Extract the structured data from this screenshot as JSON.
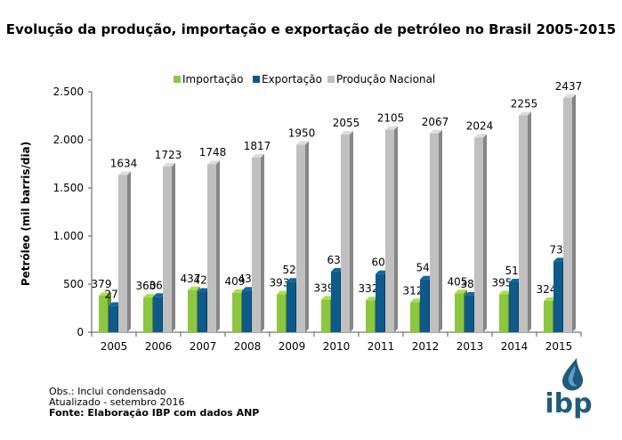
{
  "chart_data": {
    "type": "bar",
    "title": "Evolução da produção, importação e exportação de petróleo no Brasil 2005-2015",
    "ylabel": "Petróleo (mil barris/dia)",
    "xlabel": "",
    "ylim": [
      0,
      2500
    ],
    "yticks": [
      0,
      500,
      1000,
      1500,
      2000,
      2500
    ],
    "ytick_labels": [
      "0",
      "500",
      "1.000",
      "1.500",
      "2.000",
      "2.500"
    ],
    "grid": false,
    "legend_position": "top",
    "categories": [
      "2005",
      "2006",
      "2007",
      "2008",
      "2009",
      "2010",
      "2011",
      "2012",
      "2013",
      "2014",
      "2015"
    ],
    "series": [
      {
        "name": "Importação",
        "color": "#8dc63f",
        "values": [
          379,
          360,
          437,
          409,
          393,
          339,
          332,
          312,
          405,
          395,
          324
        ]
      },
      {
        "name": "Exportação",
        "color": "#0e5a8a",
        "values": [
          274,
          368,
          421,
          433,
          526,
          631,
          605,
          549,
          381,
          519,
          737
        ]
      },
      {
        "name": "Produção Nacional",
        "color": "#c0c0c0",
        "values": [
          1634,
          1723,
          1748,
          1817,
          1950,
          2055,
          2105,
          2067,
          2024,
          2255,
          2437
        ]
      }
    ]
  },
  "notes": {
    "line1": "Obs.: Inclui condensado",
    "line2": "Atualizado - setembro 2016",
    "source": "Fonte: Elaboração IBP com dados ANP"
  },
  "logo": {
    "text": "ibp"
  }
}
